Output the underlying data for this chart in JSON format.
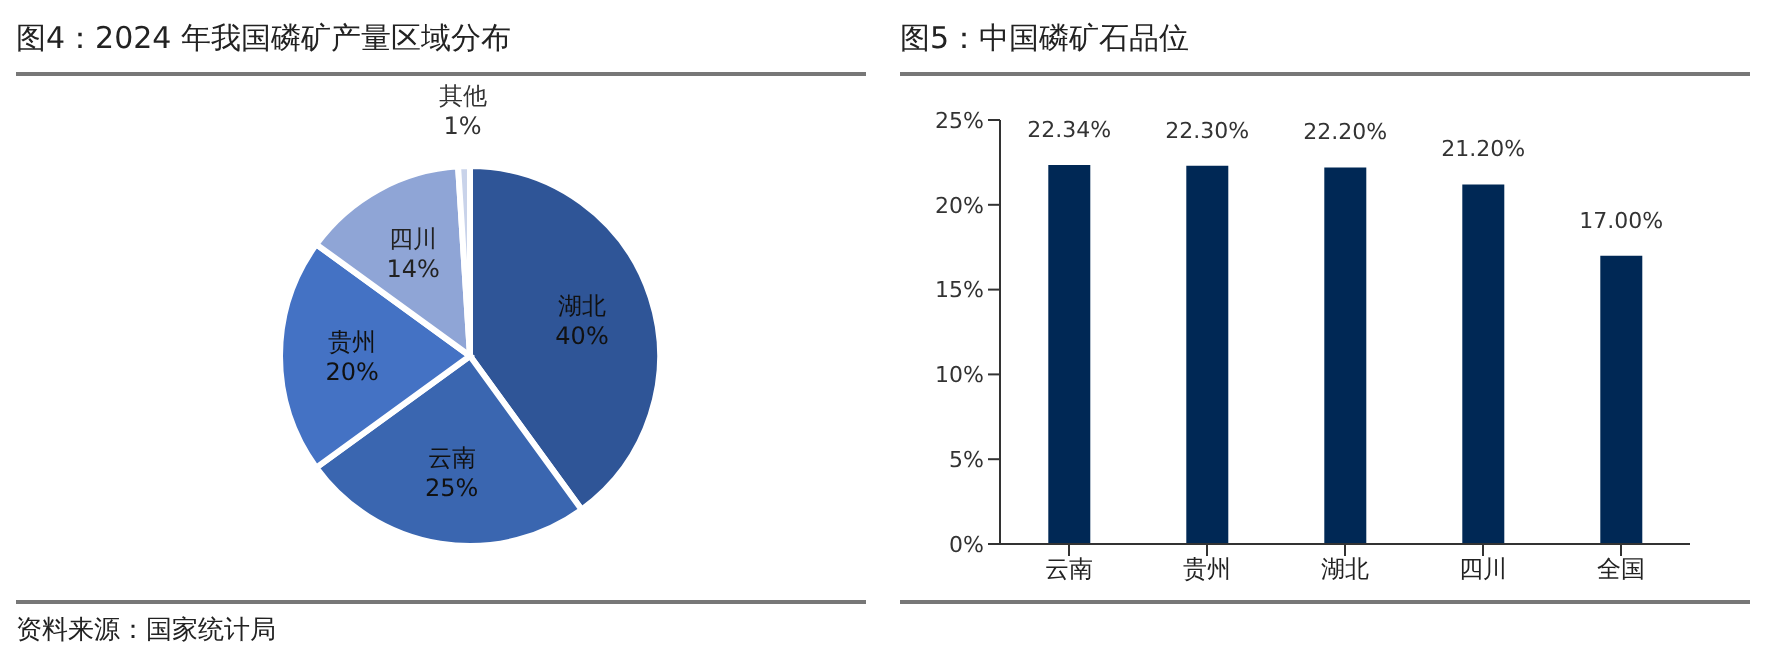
{
  "chart_data": [
    {
      "type": "pie",
      "title": "图4：2024 年我国磷矿产量区域分布",
      "categories": [
        "湖北",
        "云南",
        "贵州",
        "四川",
        "其他"
      ],
      "values": [
        40,
        25,
        20,
        14,
        1
      ],
      "colors": [
        "#2f5597",
        "#3a66b0",
        "#4472c4",
        "#8fa5d6",
        "#c9d3ea"
      ],
      "value_labels": [
        "40%",
        "25%",
        "20%",
        "14%",
        "1%"
      ],
      "legend": false,
      "annotations": [
        "资料来源：国家统计局"
      ]
    },
    {
      "type": "bar",
      "title": "图5：中国磷矿石品位",
      "categories": [
        "云南",
        "贵州",
        "湖北",
        "四川",
        "全国"
      ],
      "values": [
        22.34,
        22.3,
        22.2,
        21.2,
        17.0
      ],
      "color": "#002855",
      "value_labels": [
        "22.34%",
        "22.30%",
        "22.20%",
        "21.20%",
        "17.00%"
      ],
      "ylim": [
        0,
        25
      ],
      "yticks": [
        {
          "value": 0,
          "label": "0%"
        },
        {
          "value": 5,
          "label": "5%"
        },
        {
          "value": 10,
          "label": "10%"
        },
        {
          "value": 15,
          "label": "15%"
        },
        {
          "value": 20,
          "label": "20%"
        },
        {
          "value": 25,
          "label": "25%"
        }
      ],
      "grid": false,
      "legend": false
    }
  ]
}
